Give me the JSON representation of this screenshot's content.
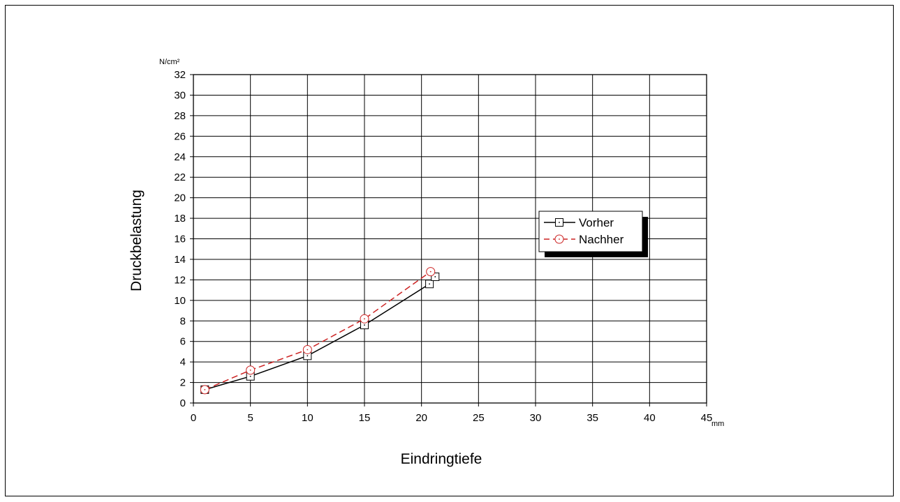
{
  "chart_data": {
    "type": "line",
    "xlabel": "Eindringtiefe",
    "ylabel": "Druckbelastung",
    "x_unit": "mm",
    "y_unit": "N/cm²",
    "xlim": [
      0,
      45
    ],
    "ylim": [
      0,
      32
    ],
    "x_ticks": [
      0,
      5,
      10,
      15,
      20,
      25,
      30,
      35,
      40,
      45
    ],
    "y_ticks": [
      0,
      2,
      4,
      6,
      8,
      10,
      12,
      14,
      16,
      18,
      20,
      22,
      24,
      26,
      28,
      30,
      32
    ],
    "grid": true,
    "legend_position": "right",
    "series": [
      {
        "name": "Vorher",
        "color": "#000000",
        "line_style": "solid",
        "marker": "square",
        "x": [
          1,
          5,
          10,
          15,
          20.7,
          21.2
        ],
        "y": [
          1.3,
          2.6,
          4.6,
          7.6,
          11.6,
          12.3
        ]
      },
      {
        "name": "Nachher",
        "color": "#cc2222",
        "line_style": "dashed",
        "marker": "circle",
        "x": [
          1,
          5,
          10,
          15,
          20.8
        ],
        "y": [
          1.3,
          3.2,
          5.2,
          8.2,
          12.8
        ]
      }
    ]
  }
}
